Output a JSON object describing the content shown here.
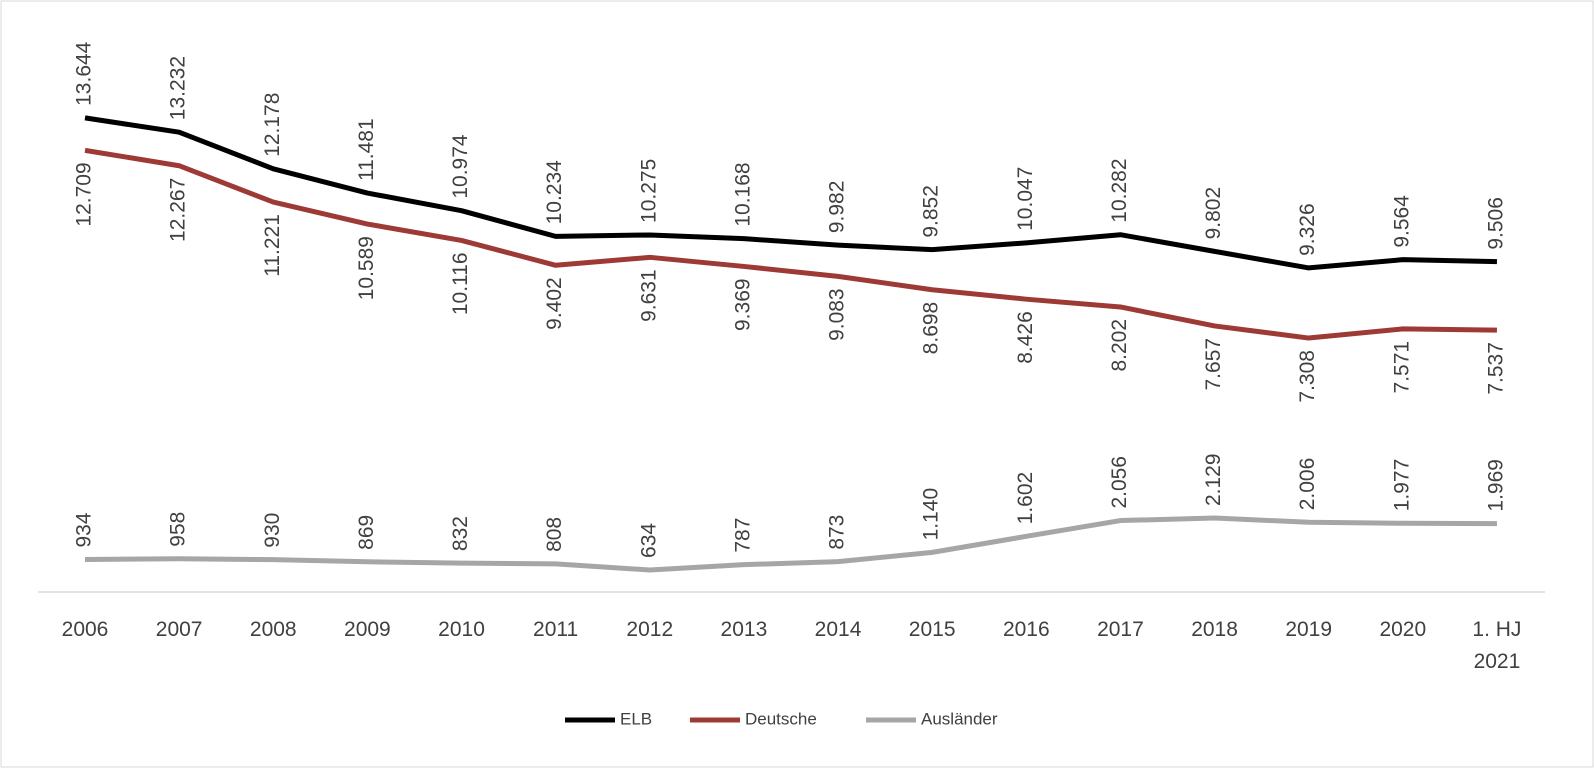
{
  "chart_data": {
    "type": "line",
    "categories": [
      "2006",
      "2007",
      "2008",
      "2009",
      "2010",
      "2011",
      "2012",
      "2013",
      "2014",
      "2015",
      "2016",
      "2017",
      "2018",
      "2019",
      "2020",
      "1. HJ 2021"
    ],
    "series": [
      {
        "name": "ELB",
        "color": "#000000",
        "values": [
          13644,
          13232,
          12178,
          11481,
          10974,
          10234,
          10275,
          10168,
          9982,
          9852,
          10047,
          10282,
          9802,
          9326,
          9564,
          9506
        ],
        "value_labels": [
          "13.644",
          "13.232",
          "12.178",
          "11.481",
          "10.974",
          "10.234",
          "10.275",
          "10.168",
          "9.982",
          "9.852",
          "10.047",
          "10.282",
          "9.802",
          "9.326",
          "9.564",
          "9.506"
        ]
      },
      {
        "name": "Deutsche",
        "color": "#9e3a36",
        "values": [
          12709,
          12267,
          11221,
          10589,
          10116,
          9402,
          9631,
          9369,
          9083,
          8698,
          8426,
          8202,
          7657,
          7308,
          7571,
          7537
        ],
        "value_labels": [
          "12.709",
          "12.267",
          "11.221",
          "10.589",
          "10.116",
          "9.402",
          "9.631",
          "9.369",
          "9.083",
          "8.698",
          "8.426",
          "8.202",
          "7.657",
          "7.308",
          "7.571",
          "7.537"
        ]
      },
      {
        "name": "Ausländer",
        "color": "#a6a6a6",
        "values": [
          934,
          958,
          930,
          869,
          832,
          808,
          634,
          787,
          873,
          1140,
          1602,
          2056,
          2129,
          2006,
          1977,
          1969
        ],
        "value_labels": [
          "934",
          "958",
          "930",
          "869",
          "832",
          "808",
          "634",
          "787",
          "873",
          "1.140",
          "1.602",
          "2.056",
          "2.129",
          "2.006",
          "1.977",
          "1.969"
        ]
      }
    ],
    "ylim": [
      0,
      16000
    ],
    "legend": "bottom"
  }
}
